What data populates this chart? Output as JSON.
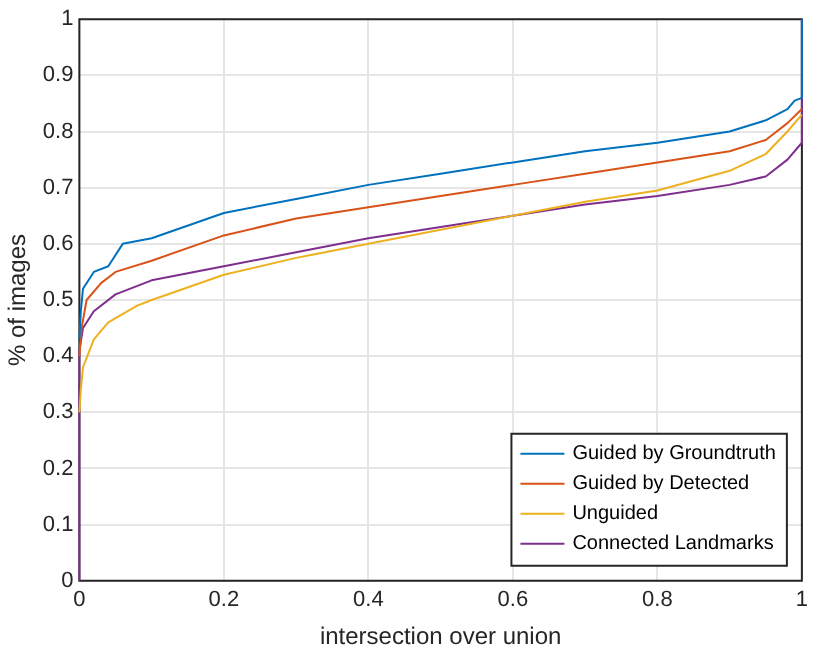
{
  "chart_data": {
    "type": "line",
    "xlabel": "intersection over union",
    "ylabel": "% of images",
    "xlim": [
      0,
      1
    ],
    "xticks": [
      0,
      0.2,
      0.4,
      0.6,
      0.8,
      1
    ],
    "ylim": [
      0,
      1
    ],
    "yticks": [
      0,
      0.1,
      0.2,
      0.3,
      0.4,
      0.5,
      0.6,
      0.7,
      0.8,
      0.9,
      1
    ],
    "grid": true,
    "legend": "bottom right",
    "marker": "none",
    "line_style": "solid",
    "series": [
      {
        "name": "Guided by Groundtruth",
        "color": "#0072bd",
        "x": [
          0,
          0.002,
          0.005,
          0.02,
          0.04,
          0.06,
          0.1,
          0.2,
          0.3,
          0.4,
          0.5,
          0.6,
          0.7,
          0.8,
          0.9,
          0.95,
          0.98,
          0.99,
          1,
          1
        ],
        "values": [
          0.43,
          0.48,
          0.52,
          0.55,
          0.56,
          0.6,
          0.61,
          0.655,
          0.68,
          0.705,
          0.725,
          0.745,
          0.765,
          0.78,
          0.8,
          0.82,
          0.84,
          0.855,
          0.86,
          1
        ]
      },
      {
        "name": "Guided by Detected",
        "color": "#d95319",
        "x": [
          0,
          0.003,
          0.01,
          0.03,
          0.05,
          0.1,
          0.2,
          0.3,
          0.4,
          0.5,
          0.6,
          0.7,
          0.8,
          0.9,
          0.95,
          0.98,
          1
        ],
        "values": [
          0.4,
          0.45,
          0.5,
          0.53,
          0.55,
          0.57,
          0.615,
          0.645,
          0.665,
          0.685,
          0.705,
          0.725,
          0.745,
          0.765,
          0.785,
          0.815,
          0.84
        ]
      },
      {
        "name": "Unguided",
        "color": "#edb120",
        "x": [
          0,
          0.002,
          0.005,
          0.02,
          0.04,
          0.08,
          0.1,
          0.2,
          0.3,
          0.4,
          0.5,
          0.6,
          0.7,
          0.8,
          0.9,
          0.95,
          0.98,
          1
        ],
        "values": [
          0.3,
          0.34,
          0.38,
          0.43,
          0.46,
          0.49,
          0.5,
          0.545,
          0.575,
          0.6,
          0.625,
          0.65,
          0.675,
          0.695,
          0.73,
          0.76,
          0.8,
          0.83
        ]
      },
      {
        "name": "Connected Landmarks",
        "color": "#7e2f8e",
        "x": [
          0,
          0,
          0.005,
          0.02,
          0.05,
          0.1,
          0.2,
          0.3,
          0.4,
          0.5,
          0.6,
          0.7,
          0.8,
          0.9,
          0.95,
          0.98,
          1,
          1
        ],
        "values": [
          0,
          0.41,
          0.45,
          0.48,
          0.51,
          0.535,
          0.56,
          0.585,
          0.61,
          0.63,
          0.65,
          0.67,
          0.685,
          0.705,
          0.72,
          0.75,
          0.78,
          1
        ]
      }
    ]
  }
}
